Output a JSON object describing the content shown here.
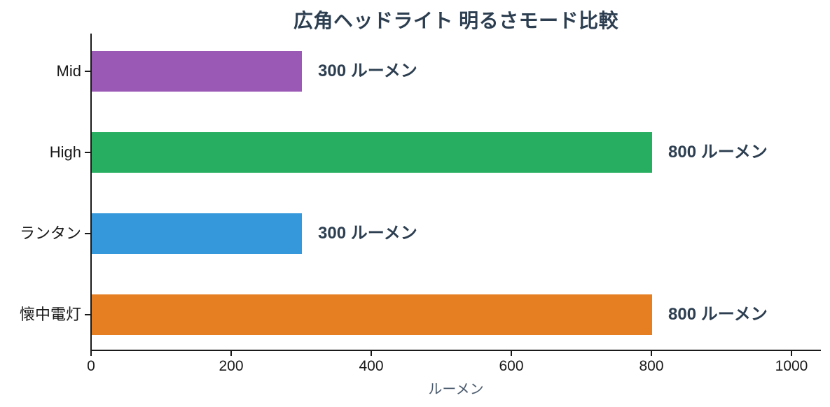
{
  "chart_data": {
    "type": "bar",
    "orientation": "horizontal",
    "title": "広角ヘッドライト 明るさモード比較",
    "xlabel": "ルーメン",
    "ylabel": "",
    "categories": [
      "Mid",
      "High",
      "ランタン",
      "懐中電灯"
    ],
    "values": [
      300,
      800,
      300,
      800
    ],
    "bar_labels": [
      "300 ルーメン",
      "800 ルーメン",
      "300 ルーメン",
      "800 ルーメン"
    ],
    "bar_colors": [
      "#9b59b6",
      "#27ae60",
      "#3498db",
      "#e67e22"
    ],
    "x_ticks": [
      0,
      200,
      400,
      600,
      800,
      1000
    ],
    "xlim": [
      0,
      1042
    ],
    "grid": false,
    "legend": null
  },
  "colors": {
    "title": "#2c3e50",
    "value_label": "#2c3e50",
    "axis": "#1a1a1a",
    "tick_label": "#1a1a1a",
    "xlabel": "#4a5a6d",
    "background": "#ffffff"
  }
}
